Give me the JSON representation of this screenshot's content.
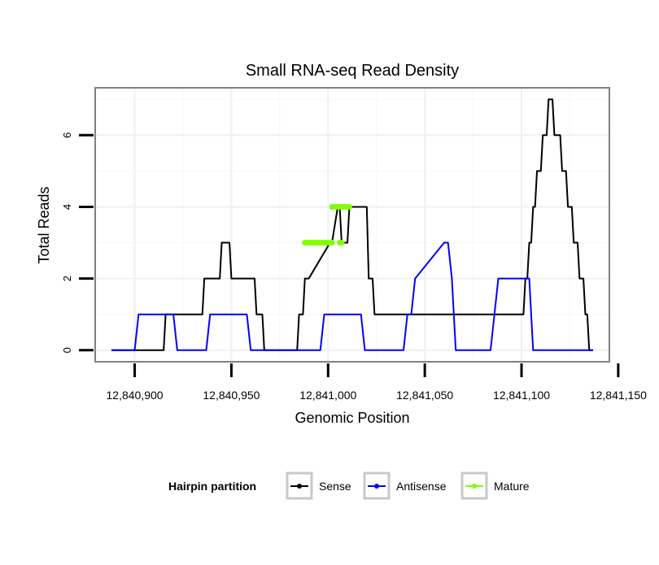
{
  "chart_data": {
    "type": "line",
    "title": "Small RNA-seq Read Density",
    "xlabel": "Genomic Position",
    "ylabel": "Total Reads",
    "xlim": [
      12840880,
      12841145
    ],
    "ylim": [
      -0.3,
      7.3
    ],
    "x_ticks": [
      12840900,
      12840950,
      12841000,
      12841050,
      12841100,
      12841150
    ],
    "x_tick_labels": [
      "12,840,900",
      "12,840,950",
      "12,841,000",
      "12,841,050",
      "12,841,100",
      "12,841,150"
    ],
    "y_ticks": [
      0,
      2,
      4,
      6
    ],
    "y_tick_labels": [
      "0",
      "2",
      "4",
      "6"
    ],
    "grid": true,
    "legend": {
      "title": "Hairpin partition",
      "position": "bottom",
      "entries": [
        "Sense",
        "Antisense",
        "Mature"
      ]
    },
    "series": [
      {
        "name": "Sense",
        "color": "#000000",
        "style": "line",
        "x": [
          12840888,
          12840915,
          12840916,
          12840928,
          12840929,
          12840935,
          12840936,
          12840940,
          12840941,
          12840944,
          12840945,
          12840949,
          12840950,
          12840962,
          12840963,
          12840966,
          12840967,
          12840984,
          12840985,
          12840987,
          12840988,
          12840990,
          12841001,
          12841002,
          12841005,
          12841006,
          12841007,
          12841010,
          12841011,
          12841020,
          12841021,
          12841023,
          12841024,
          12841035,
          12841100,
          12841101,
          12841102,
          12841103,
          12841104,
          12841105,
          12841106,
          12841107,
          12841108,
          12841110,
          12841111,
          12841113,
          12841114,
          12841116,
          12841117,
          12841120,
          12841121,
          12841123,
          12841124,
          12841126,
          12841127,
          12841129,
          12841130,
          12841132,
          12841133,
          12841134,
          12841135,
          12841136,
          12841137
        ],
        "y": [
          0,
          0,
          1,
          1,
          1,
          1,
          2,
          2,
          2,
          2,
          3,
          3,
          2,
          2,
          1,
          1,
          0,
          0,
          1,
          1,
          2,
          2,
          3,
          3,
          4,
          4,
          3,
          3,
          4,
          4,
          2,
          2,
          1,
          1,
          1,
          1,
          2,
          2,
          3,
          3,
          4,
          4,
          5,
          5,
          6,
          6,
          7,
          7,
          6,
          6,
          5,
          5,
          4,
          4,
          3,
          3,
          2,
          2,
          1,
          1,
          0,
          0,
          0
        ]
      },
      {
        "name": "Antisense",
        "color": "#0000ff",
        "style": "line",
        "x": [
          12840888,
          12840900,
          12840902,
          12840920,
          12840922,
          12840937,
          12840939,
          12840958,
          12840960,
          12840996,
          12840998,
          12841017,
          12841019,
          12841039,
          12841041,
          12841043,
          12841045,
          12841060,
          12841062,
          12841064,
          12841066,
          12841084,
          12841086,
          12841088,
          12841090,
          12841104,
          12841106,
          12841110,
          12841135,
          12841137
        ],
        "y": [
          0,
          0,
          1,
          1,
          0,
          0,
          1,
          1,
          0,
          0,
          1,
          1,
          0,
          0,
          1,
          1,
          2,
          3,
          3,
          2,
          0,
          0,
          1,
          2,
          2,
          2,
          0,
          0,
          0,
          0
        ]
      },
      {
        "name": "Mature",
        "color": "#7fff00",
        "style": "line+points",
        "segments": [
          {
            "x": [
              12840988,
              12841002
            ],
            "y": [
              3,
              3
            ]
          },
          {
            "x": [
              12841002,
              12841011
            ],
            "y": [
              4,
              4
            ]
          },
          {
            "x": [
              12841006,
              12841007
            ],
            "y": [
              3,
              3
            ]
          }
        ]
      }
    ]
  }
}
